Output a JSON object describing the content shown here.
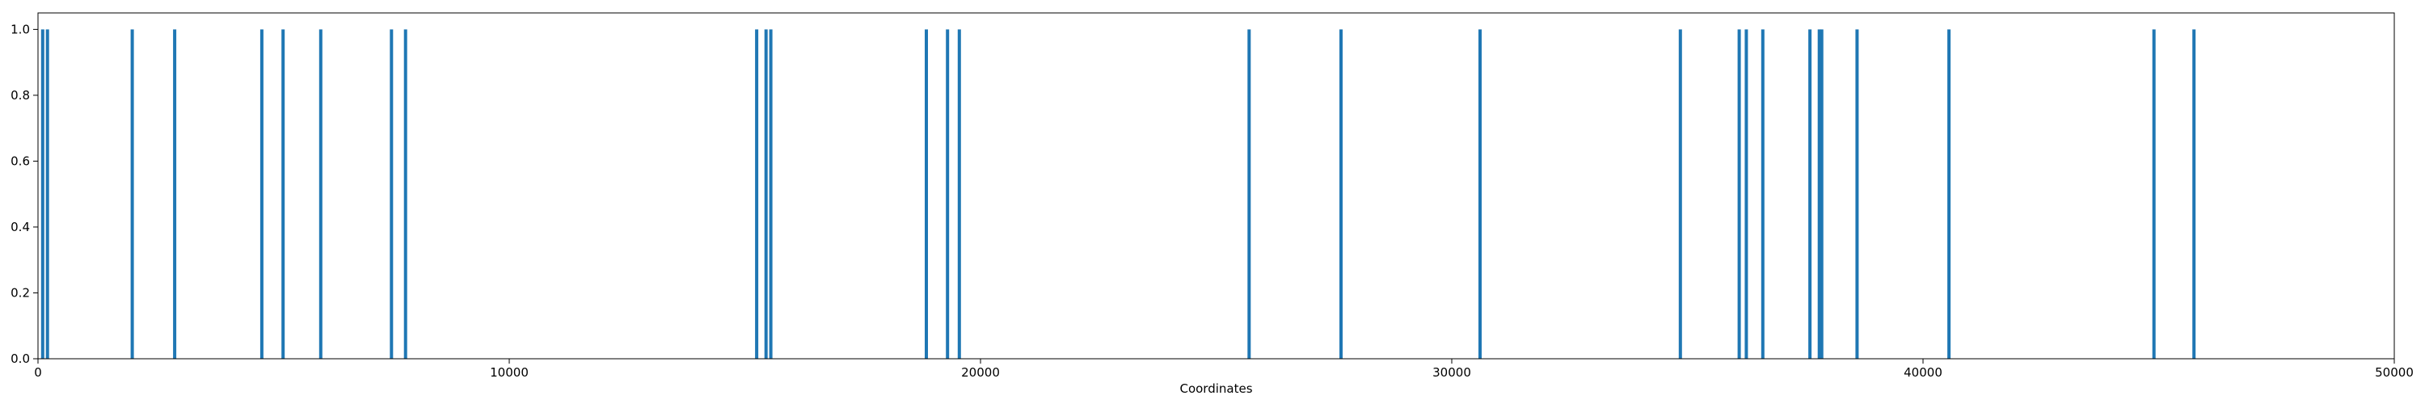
{
  "chart_data": {
    "type": "bar",
    "title": "",
    "xlabel": "Coordinates",
    "ylabel": "",
    "xlim": [
      0,
      50000
    ],
    "ylim": [
      0,
      1.05
    ],
    "grid": false,
    "x_ticks": [
      0,
      10000,
      20000,
      30000,
      40000,
      50000
    ],
    "x_tick_labels": [
      "0",
      "10000",
      "20000",
      "30000",
      "40000",
      "50000"
    ],
    "y_ticks": [
      0.0,
      0.2,
      0.4,
      0.6,
      0.8,
      1.0
    ],
    "y_tick_labels": [
      "0.0",
      "0.2",
      "0.4",
      "0.6",
      "0.8",
      "1.0"
    ],
    "bar_color": "#1f77b4",
    "series": [
      {
        "x": [
          100,
          200,
          2000,
          2900,
          4750,
          5200,
          6000,
          7500,
          7800,
          15250,
          15450,
          15550,
          18850,
          19300,
          19550,
          25700,
          27650,
          30600,
          34850,
          36100,
          36250,
          36600,
          37600,
          37800,
          37850,
          38600,
          40550,
          44900,
          45750
        ],
        "values": [
          1,
          1,
          1,
          1,
          1,
          1,
          1,
          1,
          1,
          1,
          1,
          1,
          1,
          1,
          1,
          1,
          1,
          1,
          1,
          1,
          1,
          1,
          1,
          1,
          1,
          1,
          1,
          1,
          1
        ]
      }
    ]
  }
}
